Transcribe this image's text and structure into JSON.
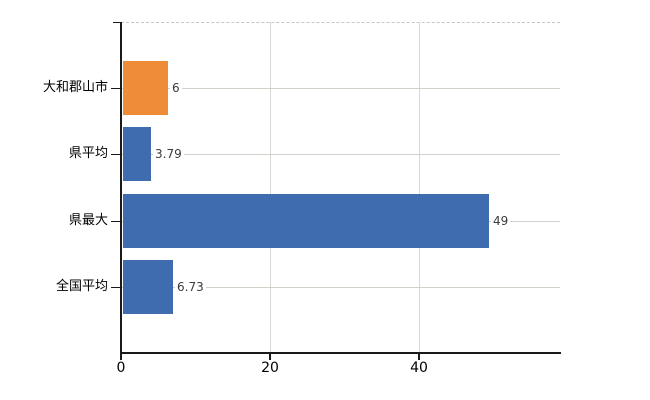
{
  "chart_data": {
    "type": "bar",
    "orientation": "horizontal",
    "title": "",
    "categories": [
      "大和郡山市",
      "県平均",
      "県最大",
      "全国平均"
    ],
    "values": [
      6,
      3.79,
      49,
      6.73
    ],
    "value_labels": [
      "6",
      "3.79",
      "49",
      "6.73"
    ],
    "series": [
      {
        "name": "",
        "values": [
          6,
          3.79,
          49,
          6.73
        ]
      }
    ],
    "bar_colors": [
      "#ee8c38",
      "#3e6caf",
      "#3e6caf",
      "#3e6caf"
    ],
    "x_ticks": [
      0,
      20,
      40
    ],
    "x_tick_labels": [
      "0",
      "20",
      "40"
    ],
    "xlim": [
      0,
      58.9
    ],
    "xlabel": "",
    "ylabel": "",
    "grid": true,
    "legend": false,
    "colors": {
      "background": "#ffffff",
      "axis": "#1a1a1a",
      "h_gridline": "#ced2c8",
      "v_gridline": "#d8d8d5",
      "top_dashed_line": "#c6c9c2",
      "value_label_text": "#3b3b3b",
      "axis_label_text": "#000000"
    }
  }
}
